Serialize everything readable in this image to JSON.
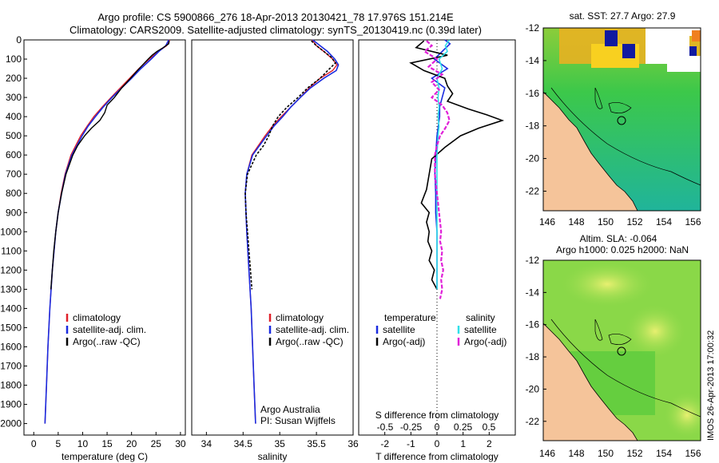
{
  "header": {
    "line1": "Argo profile: CS 5900866_276 18-Apr-2013 20130421_78 17.976S 151.214E",
    "line2": "Climatology: CARS2009. Satellite-adjusted climatology: synTS_20130419.nc (0.39d later)"
  },
  "colors": {
    "clim": "#e0202a",
    "sat": "#1a2be0",
    "argo": "#000000",
    "sal_sat": "#30e0e8",
    "sal_argo": "#e020d8",
    "land": "#f5c49a"
  },
  "depth_ticks": [
    "0",
    "100",
    "200",
    "300",
    "400",
    "500",
    "600",
    "700",
    "800",
    "900",
    "1000",
    "1100",
    "1200",
    "1300",
    "1400",
    "1500",
    "1600",
    "1700",
    "1800",
    "1900",
    "2000"
  ],
  "chart_data": [
    {
      "type": "line",
      "panel": "temperature",
      "xlabel": "temperature (deg C)",
      "ylabel": "depth",
      "xlim": [
        -2,
        31
      ],
      "ylim": [
        2060,
        0
      ],
      "xticks": [
        "0",
        "5",
        "10",
        "15",
        "20",
        "25",
        "30"
      ],
      "legend": [
        "climatology",
        "satellite-adj. clim.",
        "Argo(..raw -QC)"
      ],
      "series": [
        {
          "name": "climatology",
          "depth": [
            0,
            30,
            60,
            100,
            150,
            200,
            250,
            300,
            350,
            400,
            450,
            500,
            600,
            700,
            800,
            900,
            1000,
            1200,
            1400,
            1600,
            1800,
            2000
          ],
          "values": [
            27.8,
            27.2,
            25.5,
            23.6,
            21.5,
            19.6,
            17.7,
            15.8,
            14.0,
            12.3,
            10.9,
            9.6,
            7.6,
            6.4,
            5.6,
            5.0,
            4.5,
            3.8,
            3.3,
            2.9,
            2.6,
            2.3
          ]
        },
        {
          "name": "satellite-adj. clim.",
          "depth": [
            0,
            30,
            60,
            100,
            150,
            200,
            250,
            300,
            350,
            400,
            450,
            500,
            600,
            700,
            800,
            900,
            1000,
            1200,
            1400,
            1600,
            1800,
            2000
          ],
          "values": [
            27.6,
            27.0,
            25.6,
            24.0,
            21.9,
            20.0,
            18.0,
            16.0,
            14.2,
            12.6,
            11.1,
            9.9,
            7.8,
            6.5,
            5.7,
            5.0,
            4.5,
            3.8,
            3.3,
            2.9,
            2.6,
            2.3
          ]
        },
        {
          "name": "Argo(..raw -QC)",
          "depth": [
            5,
            20,
            40,
            60,
            80,
            100,
            130,
            160,
            200,
            250,
            300,
            340,
            380,
            420,
            460,
            500,
            550,
            600,
            700,
            800,
            900,
            1000,
            1100,
            1200,
            1300
          ],
          "values": [
            27.7,
            27.6,
            26.5,
            25.2,
            24.2,
            23.4,
            22.3,
            21.2,
            19.8,
            18.0,
            16.5,
            15.0,
            14.5,
            13.5,
            11.8,
            10.4,
            9.0,
            8.0,
            6.6,
            5.7,
            5.0,
            4.5,
            4.1,
            3.8,
            3.5
          ]
        }
      ]
    },
    {
      "type": "line",
      "panel": "salinity",
      "xlabel": "salinity",
      "ylabel": "depth",
      "xlim": [
        33.8,
        36
      ],
      "ylim": [
        2060,
        0
      ],
      "xticks": [
        "34",
        "34.5",
        "35",
        "35.5",
        "36"
      ],
      "legend": [
        "climatology",
        "satellite-adj. clim.",
        "Argo(..raw -QC)"
      ],
      "note_line1": "Argo Australia",
      "note_line2": "PI: Susan Wijffels",
      "series": [
        {
          "name": "climatology",
          "depth": [
            0,
            30,
            60,
            100,
            130,
            160,
            200,
            250,
            300,
            350,
            400,
            450,
            500,
            600,
            700,
            800,
            900,
            1000,
            1200,
            1400,
            1600,
            1800,
            2000
          ],
          "values": [
            35.44,
            35.5,
            35.6,
            35.72,
            35.78,
            35.72,
            35.55,
            35.4,
            35.28,
            35.15,
            35.02,
            34.9,
            34.8,
            34.62,
            34.55,
            34.53,
            34.54,
            34.55,
            34.58,
            34.61,
            34.63,
            34.65,
            34.67
          ]
        },
        {
          "name": "satellite-adj. clim.",
          "depth": [
            0,
            30,
            60,
            100,
            130,
            160,
            200,
            250,
            300,
            350,
            400,
            450,
            500,
            600,
            700,
            800,
            900,
            1000,
            1200,
            1400,
            1600,
            1800,
            2000
          ],
          "values": [
            35.45,
            35.55,
            35.65,
            35.75,
            35.8,
            35.77,
            35.6,
            35.42,
            35.28,
            35.15,
            35.04,
            34.92,
            34.82,
            34.63,
            34.55,
            34.53,
            34.54,
            34.55,
            34.58,
            34.61,
            34.63,
            34.65,
            34.67
          ]
        },
        {
          "name": "Argo(..raw -QC)",
          "depth": [
            5,
            30,
            60,
            90,
            120,
            150,
            200,
            250,
            300,
            350,
            400,
            450,
            500,
            550,
            600,
            700,
            800,
            900,
            1000,
            1100,
            1200,
            1300
          ],
          "values": [
            35.43,
            35.5,
            35.6,
            35.7,
            35.76,
            35.68,
            35.55,
            35.38,
            35.25,
            35.1,
            34.98,
            34.9,
            34.85,
            34.78,
            34.68,
            34.56,
            34.53,
            34.54,
            34.56,
            34.58,
            34.6,
            34.62
          ]
        }
      ]
    },
    {
      "type": "line",
      "panel": "difference",
      "xlabel": "T difference from climatology",
      "xlabel_top": "S difference from climatology",
      "xlim": [
        -3,
        3
      ],
      "ylim": [
        2060,
        0
      ],
      "xticks": [
        "-2",
        "-1",
        "0",
        "1",
        "2"
      ],
      "xticks_top": [
        "-0.5",
        "-0.25",
        "0",
        "0.25",
        "0.5"
      ],
      "legend_heading_t": "temperature",
      "legend_heading_s": "salinity",
      "legend_t": [
        "satellite",
        "Argo(-adj)"
      ],
      "legend_s": [
        "satellite",
        "Argo(-adj)"
      ],
      "series": [
        {
          "name": "temperature satellite",
          "depth": [
            0,
            20,
            60,
            100,
            150,
            200,
            250,
            300,
            350,
            400,
            500,
            600,
            700,
            800,
            900,
            1000,
            1100,
            1200,
            1300
          ],
          "values": [
            0.3,
            0.5,
            0.2,
            -0.1,
            0.4,
            -0.2,
            0.3,
            0.2,
            0.1,
            0.1,
            0.0,
            -0.05,
            -0.08,
            -0.05,
            -0.05,
            0.0,
            0.0,
            0.0,
            0.0
          ]
        },
        {
          "name": "temperature Argo(-adj)",
          "depth": [
            5,
            40,
            80,
            120,
            160,
            200,
            240,
            280,
            320,
            360,
            390,
            420,
            460,
            500,
            560,
            620,
            700,
            780,
            850,
            900,
            950,
            1000,
            1050,
            1100,
            1150,
            1200,
            1250,
            1300
          ],
          "values": [
            -0.5,
            -0.8,
            0.4,
            -1.0,
            -0.5,
            0.3,
            0.4,
            0.6,
            0.4,
            1.2,
            1.9,
            2.5,
            1.6,
            0.9,
            0.3,
            -0.2,
            -0.3,
            -0.4,
            -0.6,
            -0.3,
            -0.4,
            -0.3,
            -0.35,
            -0.2,
            -0.3,
            -0.1,
            -0.2,
            0.0
          ]
        },
        {
          "name": "salinity satellite",
          "depth": [
            0,
            30,
            60,
            100,
            150,
            200,
            250,
            300,
            350,
            400,
            450,
            500,
            600,
            700,
            800,
            900,
            1000,
            1100,
            1200,
            1300
          ],
          "values": [
            0.12,
            0.08,
            0.1,
            0.02,
            0.05,
            0.0,
            0.02,
            0.01,
            0.02,
            0.01,
            0.02,
            0.01,
            0.0,
            0.0,
            0.0,
            0.0,
            0.0,
            0.0,
            0.0,
            0.0
          ]
        },
        {
          "name": "salinity Argo(-adj)",
          "depth": [
            5,
            30,
            60,
            100,
            140,
            180,
            220,
            260,
            300,
            340,
            380,
            420,
            460,
            500,
            550,
            600,
            700,
            800,
            850,
            900,
            950,
            1000,
            1050,
            1100,
            1150,
            1200,
            1250,
            1300,
            1350
          ],
          "values": [
            -0.1,
            -0.05,
            -0.12,
            0.0,
            -0.08,
            0.05,
            -0.05,
            0.02,
            -0.05,
            0.05,
            0.1,
            0.12,
            0.08,
            0.03,
            0.0,
            -0.02,
            -0.02,
            0.0,
            0.01,
            0.02,
            0.03,
            0.04,
            0.03,
            0.05,
            0.04,
            0.06,
            0.04,
            0.05,
            0.03
          ]
        }
      ]
    }
  ],
  "maps": {
    "sst_title": "sat. SST: 27.7 Argo: 27.9",
    "sla_title1": "Altim. SLA: -0.064",
    "sla_title2": "Argo h1000: 0.025 h2000: NaN",
    "lat_ticks": [
      "-12",
      "-14",
      "-16",
      "-18",
      "-20",
      "-22"
    ],
    "lon_ticks": [
      "146",
      "148",
      "150",
      "152",
      "154",
      "156"
    ]
  },
  "footer": "IMOS 26-Apr-2013 17:00:32"
}
